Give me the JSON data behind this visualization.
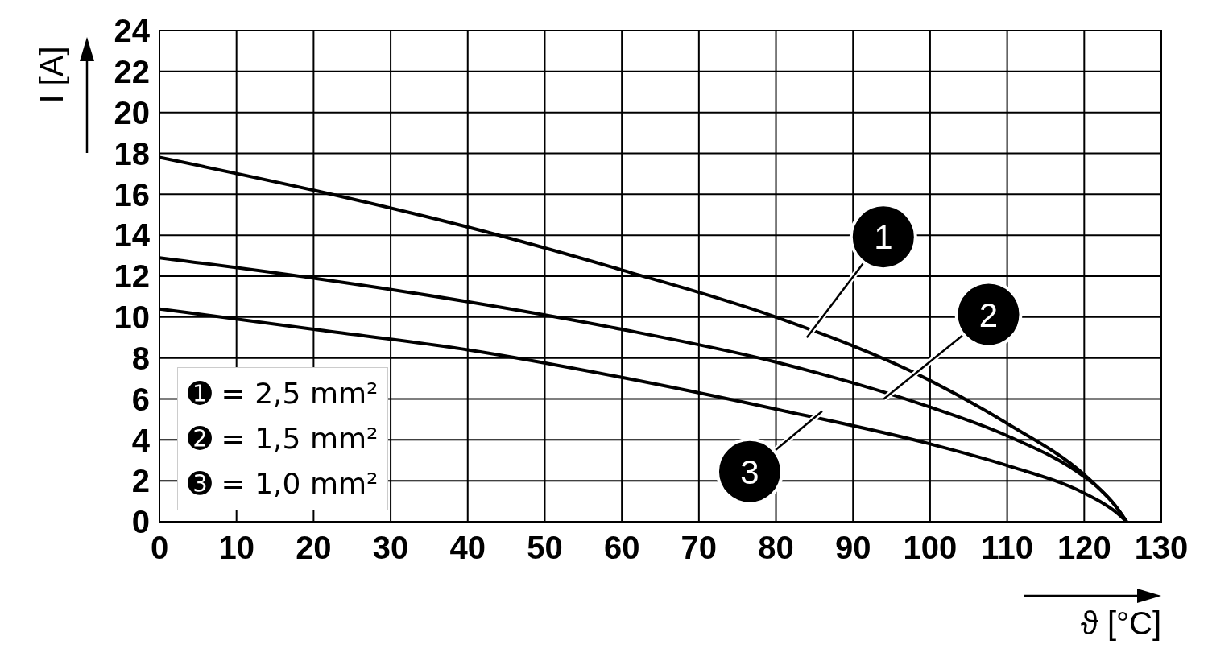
{
  "chart_data": {
    "type": "line",
    "xlabel": "ϑ [°C]",
    "ylabel": "I [A]",
    "x": [
      0,
      20,
      40,
      60,
      80,
      100,
      110,
      120,
      122,
      124,
      125.5
    ],
    "series": [
      {
        "color": "#000000",
        "values": [
          17.8,
          16.2,
          14.4,
          12.3,
          10.0,
          6.9,
          4.8,
          2.3,
          1.6,
          0.8,
          0
        ]
      },
      {
        "color": "#000000",
        "values": [
          12.9,
          11.9,
          10.75,
          9.4,
          7.8,
          5.6,
          4.2,
          2.2,
          1.6,
          0.8,
          0
        ]
      },
      {
        "color": "#000000",
        "values": [
          10.4,
          9.4,
          8.4,
          7.05,
          5.5,
          3.8,
          2.75,
          1.4,
          1.0,
          0.5,
          0
        ]
      }
    ],
    "annotations": [
      "1",
      "2",
      "3",
      "➊ = 2,5 mm²",
      "➋ = 1,5 mm²",
      "➌ = 1,0 mm²"
    ],
    "xlim": [
      0,
      130
    ],
    "xticks": [
      0,
      10,
      20,
      30,
      40,
      50,
      60,
      70,
      80,
      90,
      100,
      110,
      120,
      130
    ],
    "ylim": [
      0,
      24
    ],
    "yticks": [
      0,
      2,
      4,
      6,
      8,
      10,
      12,
      14,
      16,
      18,
      20,
      22,
      24
    ],
    "grid": true,
    "marker": "none",
    "line_style": "solid"
  }
}
